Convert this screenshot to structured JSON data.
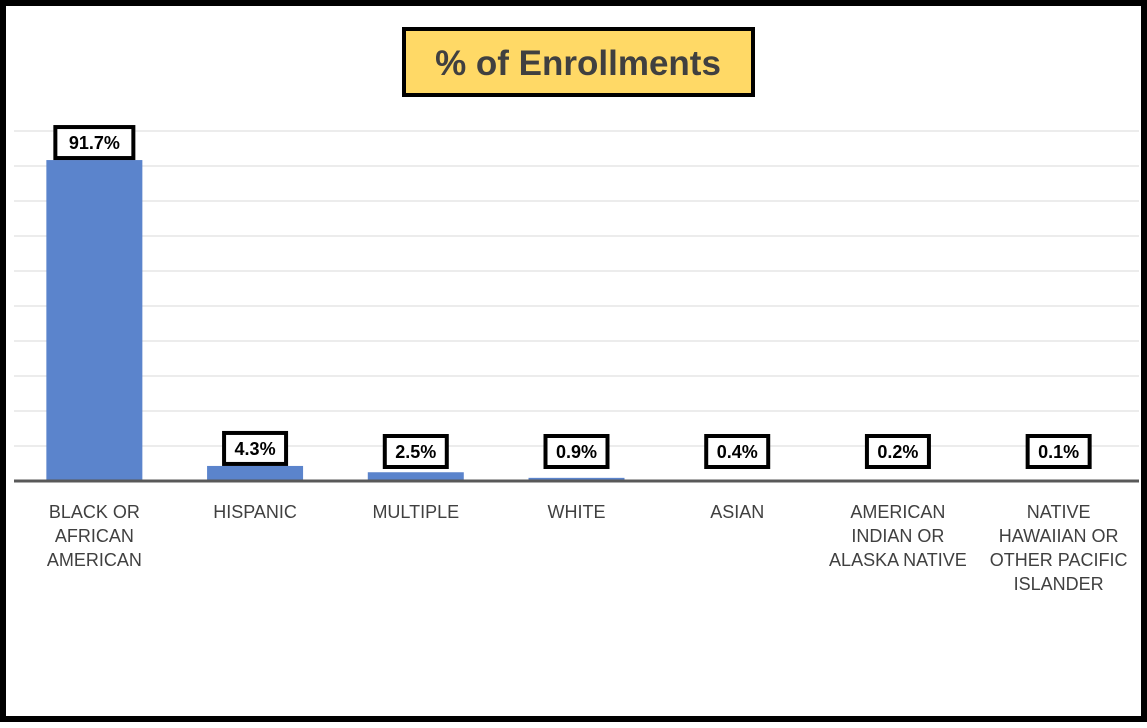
{
  "chart_data": {
    "type": "bar",
    "title": "% of Enrollments",
    "categories": [
      "BLACK OR AFRICAN AMERICAN",
      "HISPANIC",
      "MULTIPLE",
      "WHITE",
      "ASIAN",
      "AMERICAN INDIAN OR ALASKA NATIVE",
      "NATIVE HAWAIIAN OR OTHER PACIFIC ISLANDER"
    ],
    "category_lines": [
      [
        "BLACK OR",
        "AFRICAN",
        "AMERICAN"
      ],
      [
        "HISPANIC"
      ],
      [
        "MULTIPLE"
      ],
      [
        "WHITE"
      ],
      [
        "ASIAN"
      ],
      [
        "AMERICAN",
        "INDIAN OR",
        "ALASKA NATIVE"
      ],
      [
        "NATIVE",
        "HAWAIIAN OR",
        "OTHER PACIFIC",
        "ISLANDER"
      ]
    ],
    "values": [
      91.7,
      4.3,
      2.5,
      0.9,
      0.4,
      0.2,
      0.1
    ],
    "data_labels": [
      "91.7%",
      "4.3%",
      "2.5%",
      "0.9%",
      "0.4%",
      "0.2%",
      "0.1%"
    ],
    "ylim": [
      0,
      100
    ],
    "grid": true,
    "colors": {
      "bar": "#5b84cc",
      "title_bg": "#ffd966",
      "grid": "#d9d9d9",
      "axis": "#595959",
      "frame": "#000000",
      "label_box": "#000000",
      "title_text": "#404040",
      "tick_text": "#404040"
    }
  }
}
